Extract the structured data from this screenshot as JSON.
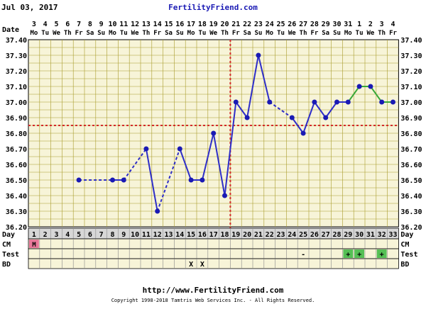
{
  "header": {
    "date": "Jul 03, 2017",
    "site": "FertilityFriend.com"
  },
  "footer": {
    "url": "http://www.FertilityFriend.com",
    "copyright": "Copyright 1998-2018 Tamtris Web Services Inc. - All Rights Reserved."
  },
  "row_labels": {
    "date": "Date",
    "day": "Day",
    "cm": "CM",
    "test": "Test",
    "bd": "BD"
  },
  "colors": {
    "background": "#ffffff",
    "grid_fill": "#f7f4d8",
    "grid_line": "#a89c2c",
    "solid_line": "#2e2ec8",
    "point": "#1a1ab4",
    "projected_line": "#39a839",
    "coverline": "#d32b2b",
    "ovulation_line": "#d32b2b",
    "header_text": "#1a1ab4",
    "cm_menses": "#e8789a",
    "test_positive": "#55c055"
  },
  "chart_data": {
    "type": "line",
    "title": "",
    "xlabel": "Day",
    "ylabel": "",
    "ylim": [
      36.2,
      37.4
    ],
    "yticks": [
      "37.40",
      "37.30",
      "37.20",
      "37.10",
      "37.00",
      "36.90",
      "36.80",
      "36.70",
      "36.60",
      "36.50",
      "36.40",
      "36.30",
      "36.20"
    ],
    "dates": [
      "3",
      "4",
      "5",
      "6",
      "7",
      "8",
      "9",
      "10",
      "11",
      "12",
      "13",
      "14",
      "15",
      "16",
      "17",
      "18",
      "19",
      "20",
      "21",
      "22",
      "23",
      "24",
      "25",
      "26",
      "27",
      "28",
      "29",
      "30",
      "31",
      "1",
      "2",
      "3",
      "4"
    ],
    "weekdays": [
      "Mo",
      "Tu",
      "We",
      "Th",
      "Fr",
      "Sa",
      "Su",
      "Mo",
      "Tu",
      "We",
      "Th",
      "Fr",
      "Sa",
      "Su",
      "Mo",
      "Tu",
      "We",
      "Th",
      "Fr",
      "Sa",
      "Su",
      "Mo",
      "Tu",
      "We",
      "Th",
      "Fr",
      "Sa",
      "Su",
      "Mo",
      "Tu",
      "We",
      "Th",
      "Fr"
    ],
    "cycle_days": [
      1,
      2,
      3,
      4,
      5,
      6,
      7,
      8,
      9,
      10,
      11,
      12,
      13,
      14,
      15,
      16,
      17,
      18,
      19,
      20,
      21,
      22,
      23,
      24,
      25,
      26,
      27,
      28,
      29,
      30,
      31,
      32,
      33
    ],
    "temperatures": [
      null,
      null,
      null,
      null,
      36.5,
      null,
      null,
      36.5,
      36.5,
      null,
      36.7,
      36.3,
      null,
      36.7,
      36.5,
      36.5,
      36.8,
      36.4,
      37.0,
      36.9,
      37.3,
      37.0,
      null,
      36.9,
      36.8,
      37.0,
      36.9,
      37.0,
      37.0,
      37.1,
      37.1,
      37.0,
      37.0
    ],
    "projected_from_day": 29,
    "coverline": 36.85,
    "ovulation_day": 18,
    "cm": {
      "1": "M"
    },
    "test": {
      "25": "-",
      "29": "+",
      "30": "+",
      "32": "+"
    },
    "bd": {
      "15": "X",
      "16": "X"
    }
  }
}
